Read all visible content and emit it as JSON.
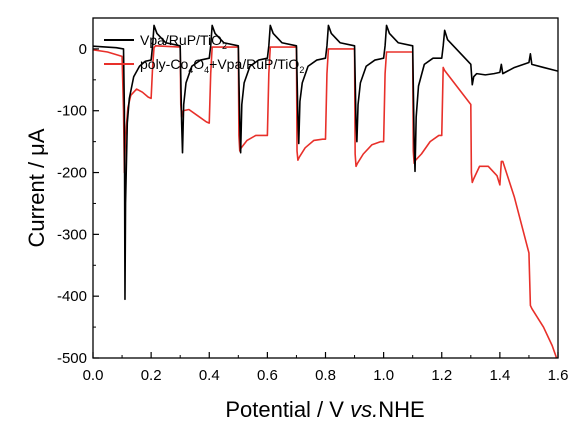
{
  "chart_data": {
    "type": "line",
    "title": "",
    "xlabel_main": "Potential / V ",
    "xlabel_italic": "vs.",
    "xlabel_tail": "NHE",
    "ylabel": "Current / μA",
    "xlim": [
      0.0,
      1.6
    ],
    "ylim": [
      50,
      -500
    ],
    "x_ticks": [
      0.0,
      0.2,
      0.4,
      0.6,
      0.8,
      1.0,
      1.2,
      1.4,
      1.6
    ],
    "x_tick_labels": [
      "0.0",
      "0.2",
      "0.4",
      "0.6",
      "0.8",
      "1.0",
      "1.2",
      "1.4",
      "1.6"
    ],
    "y_ticks": [
      0,
      -100,
      -200,
      -300,
      -400,
      -500
    ],
    "y_tick_labels": [
      "0",
      "-100",
      "-200",
      "-300",
      "-400",
      "-500"
    ],
    "legend_position": "top-left",
    "series": [
      {
        "name_base": "Vpa/RuP/TiO",
        "name_sub": "2",
        "color": "#000000",
        "x": [
          -0.02,
          0.08,
          0.105,
          0.108,
          0.11,
          0.112,
          0.118,
          0.125,
          0.14,
          0.16,
          0.18,
          0.2,
          0.205,
          0.21,
          0.22,
          0.25,
          0.3,
          0.305,
          0.308,
          0.312,
          0.32,
          0.34,
          0.37,
          0.4,
          0.405,
          0.41,
          0.42,
          0.45,
          0.5,
          0.505,
          0.508,
          0.512,
          0.52,
          0.54,
          0.57,
          0.6,
          0.605,
          0.61,
          0.62,
          0.65,
          0.7,
          0.705,
          0.708,
          0.712,
          0.72,
          0.74,
          0.77,
          0.8,
          0.805,
          0.81,
          0.82,
          0.85,
          0.9,
          0.905,
          0.908,
          0.912,
          0.92,
          0.94,
          0.97,
          1.0,
          1.005,
          1.01,
          1.02,
          1.05,
          1.1,
          1.105,
          1.108,
          1.112,
          1.12,
          1.14,
          1.17,
          1.2,
          1.205,
          1.21,
          1.22,
          1.27,
          1.3,
          1.305,
          1.31,
          1.32,
          1.35,
          1.38,
          1.4,
          1.405,
          1.41,
          1.45,
          1.5,
          1.505,
          1.51,
          1.55,
          1.6
        ],
        "y": [
          5,
          2,
          0,
          -100,
          -405,
          -250,
          -120,
          -80,
          -45,
          -28,
          -20,
          -18,
          5,
          38,
          25,
          10,
          5,
          -120,
          -168,
          -90,
          -55,
          -28,
          -18,
          -15,
          5,
          38,
          25,
          10,
          5,
          -120,
          -168,
          -90,
          -55,
          -28,
          -18,
          -15,
          5,
          38,
          25,
          10,
          5,
          -110,
          -153,
          -85,
          -55,
          -28,
          -18,
          -15,
          5,
          38,
          25,
          10,
          5,
          -120,
          -150,
          -90,
          -55,
          -28,
          -18,
          -15,
          5,
          38,
          25,
          10,
          5,
          -150,
          -198,
          -110,
          -60,
          -25,
          -15,
          -15,
          5,
          30,
          15,
          -10,
          -25,
          -58,
          -45,
          -40,
          -42,
          -40,
          -38,
          -25,
          -40,
          -30,
          -22,
          -8,
          -25,
          -30,
          -36
        ]
      },
      {
        "name_base": "poly-Co",
        "name_sub": "4",
        "name_mid": "O",
        "name_sub2": "4",
        "name_tail": "+Vpa/RuP/TiO",
        "name_sub3": "2",
        "color": "#e8302a",
        "x": [
          -0.02,
          0.05,
          0.1,
          0.105,
          0.108,
          0.112,
          0.12,
          0.13,
          0.15,
          0.17,
          0.19,
          0.2,
          0.205,
          0.21,
          0.215,
          0.3,
          0.302,
          0.305,
          0.31,
          0.33,
          0.36,
          0.39,
          0.4,
          0.405,
          0.41,
          0.5,
          0.502,
          0.505,
          0.51,
          0.53,
          0.56,
          0.59,
          0.6,
          0.605,
          0.61,
          0.7,
          0.702,
          0.705,
          0.71,
          0.73,
          0.76,
          0.79,
          0.8,
          0.805,
          0.81,
          0.9,
          0.902,
          0.905,
          0.91,
          0.93,
          0.96,
          0.99,
          1.0,
          1.005,
          1.01,
          1.1,
          1.102,
          1.105,
          1.11,
          1.13,
          1.16,
          1.19,
          1.2,
          1.205,
          1.21,
          1.3,
          1.302,
          1.305,
          1.31,
          1.33,
          1.36,
          1.39,
          1.4,
          1.405,
          1.41,
          1.45,
          1.5,
          1.505,
          1.51,
          1.55,
          1.58,
          1.595,
          1.6
        ],
        "y": [
          0,
          -5,
          -12,
          -100,
          -200,
          -140,
          -95,
          -75,
          -65,
          -70,
          -78,
          -80,
          -30,
          2,
          5,
          3,
          -90,
          -110,
          -100,
          -98,
          -108,
          -118,
          -120,
          -40,
          3,
          3,
          -140,
          -165,
          -160,
          -148,
          -140,
          -140,
          -140,
          -40,
          3,
          3,
          -165,
          -180,
          -175,
          -160,
          -148,
          -146,
          -146,
          -40,
          0,
          0,
          -170,
          -190,
          -185,
          -170,
          -155,
          -150,
          -150,
          -40,
          -5,
          -5,
          -165,
          -185,
          -180,
          -170,
          -150,
          -140,
          -140,
          -30,
          -35,
          -90,
          -200,
          -216,
          -210,
          -190,
          -190,
          -205,
          -220,
          -182,
          -182,
          -240,
          -330,
          -415,
          -420,
          -450,
          -480,
          -500,
          -510
        ]
      }
    ]
  }
}
